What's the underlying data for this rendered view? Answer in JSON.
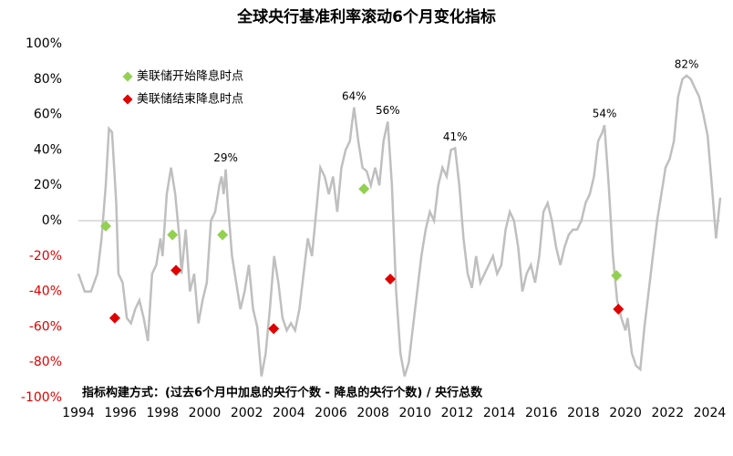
{
  "chart_data": {
    "type": "line",
    "title": "全球央行基准利率滚动6个月变化指标",
    "color": "#bfbfbf",
    "x": [
      1994.0,
      1994.3,
      1994.6,
      1994.9,
      1995.1,
      1995.3,
      1995.45,
      1995.6,
      1995.8,
      1995.9,
      1996.1,
      1996.3,
      1996.5,
      1996.7,
      1996.9,
      1997.1,
      1997.3,
      1997.5,
      1997.7,
      1997.9,
      1998.0,
      1998.2,
      1998.4,
      1998.6,
      1998.8,
      1998.9,
      1999.1,
      1999.3,
      1999.5,
      1999.7,
      1999.9,
      2000.1,
      2000.3,
      2000.5,
      2000.7,
      2000.8,
      2000.9,
      2001.0,
      2001.1,
      2001.3,
      2001.5,
      2001.7,
      2001.9,
      2002.1,
      2002.3,
      2002.5,
      2002.7,
      2002.9,
      2003.1,
      2003.3,
      2003.5,
      2003.7,
      2003.9,
      2004.1,
      2004.3,
      2004.5,
      2004.7,
      2004.9,
      2005.1,
      2005.3,
      2005.5,
      2005.7,
      2005.9,
      2006.1,
      2006.3,
      2006.5,
      2006.7,
      2006.9,
      2007.0,
      2007.1,
      2007.3,
      2007.5,
      2007.7,
      2007.9,
      2008.1,
      2008.3,
      2008.5,
      2008.7,
      2008.9,
      2009.1,
      2009.3,
      2009.5,
      2009.7,
      2009.9,
      2010.1,
      2010.3,
      2010.5,
      2010.7,
      2010.9,
      2011.1,
      2011.3,
      2011.5,
      2011.7,
      2011.9,
      2012.1,
      2012.3,
      2012.5,
      2012.7,
      2012.9,
      2013.1,
      2013.3,
      2013.5,
      2013.7,
      2013.9,
      2014.1,
      2014.3,
      2014.5,
      2014.7,
      2014.9,
      2015.1,
      2015.3,
      2015.5,
      2015.7,
      2015.9,
      2016.1,
      2016.3,
      2016.5,
      2016.7,
      2016.9,
      2017.1,
      2017.3,
      2017.5,
      2017.7,
      2017.9,
      2018.1,
      2018.3,
      2018.5,
      2018.7,
      2018.9,
      2019.0,
      2019.2,
      2019.4,
      2019.6,
      2019.8,
      2020.0,
      2020.1,
      2020.3,
      2020.5,
      2020.7,
      2020.9,
      2021.1,
      2021.3,
      2021.5,
      2021.7,
      2021.9,
      2022.1,
      2022.3,
      2022.5,
      2022.7,
      2022.9,
      2023.1,
      2023.3,
      2023.5,
      2023.7,
      2023.9,
      2024.1,
      2024.3,
      2024.5
    ],
    "values": [
      -30,
      -40,
      -40,
      -30,
      -10,
      20,
      52,
      50,
      10,
      -30,
      -35,
      -55,
      -58,
      -50,
      -45,
      -55,
      -68,
      -30,
      -25,
      -10,
      -20,
      15,
      30,
      15,
      -10,
      -30,
      -5,
      -40,
      -30,
      -58,
      -45,
      -35,
      0,
      5,
      20,
      25,
      15,
      29,
      10,
      -20,
      -35,
      -50,
      -40,
      -25,
      -50,
      -60,
      -88,
      -75,
      -50,
      -20,
      -35,
      -55,
      -62,
      -58,
      -62,
      -50,
      -30,
      -10,
      -20,
      5,
      30,
      25,
      15,
      25,
      5,
      30,
      40,
      45,
      55,
      64,
      45,
      30,
      28,
      20,
      30,
      20,
      45,
      56,
      20,
      -40,
      -75,
      -88,
      -80,
      -60,
      -40,
      -20,
      -5,
      5,
      0,
      20,
      30,
      25,
      40,
      41,
      20,
      -10,
      -30,
      -38,
      -20,
      -35,
      -30,
      -25,
      -20,
      -30,
      -25,
      -5,
      5,
      0,
      -15,
      -40,
      -30,
      -25,
      -35,
      -20,
      5,
      10,
      0,
      -15,
      -25,
      -15,
      -8,
      -5,
      -5,
      0,
      10,
      15,
      25,
      45,
      50,
      54,
      20,
      -20,
      -45,
      -55,
      -62,
      -55,
      -75,
      -82,
      -84,
      -60,
      -40,
      -20,
      0,
      15,
      30,
      35,
      45,
      70,
      80,
      82,
      80,
      75,
      70,
      60,
      48,
      20,
      -10,
      13
    ],
    "series": [
      {
        "name": "美联储开始降息时点",
        "color": "#92d050",
        "x": [
          1995.3,
          1998.47,
          2000.85,
          2007.57,
          2019.57
        ],
        "values": [
          -3,
          -8,
          -8,
          18,
          -31
        ]
      },
      {
        "name": "美联储结束降息时点",
        "color": "#e00000",
        "x": [
          1995.73,
          1998.64,
          2003.28,
          2008.82,
          2019.66
        ],
        "values": [
          -55,
          -28,
          -61,
          -33,
          -50
        ]
      }
    ],
    "annotations": [
      {
        "text": "29%",
        "x": 2001.0,
        "y": 29
      },
      {
        "text": "64%",
        "x": 2007.1,
        "y": 64
      },
      {
        "text": "56%",
        "x": 2008.7,
        "y": 56
      },
      {
        "text": "41%",
        "x": 2011.9,
        "y": 41
      },
      {
        "text": "54%",
        "x": 2019.0,
        "y": 54
      },
      {
        "text": "82%",
        "x": 2022.9,
        "y": 82
      }
    ],
    "note": "指标构建方式：(过去6个月中加息的央行个数 - 降息的央行个数) / 央行总数",
    "xlim": [
      1994,
      2024.5
    ],
    "xticks": [
      1994,
      1996,
      1998,
      2000,
      2002,
      2004,
      2006,
      2008,
      2010,
      2012,
      2014,
      2016,
      2018,
      2020,
      2022,
      2024
    ],
    "ylim": [
      -100,
      100
    ],
    "yticks": [
      {
        "value": -100,
        "label": "-100%"
      },
      {
        "value": -80,
        "label": "-80%"
      },
      {
        "value": -60,
        "label": "-60%"
      },
      {
        "value": -40,
        "label": "-40%"
      },
      {
        "value": -20,
        "label": "-20%"
      },
      {
        "value": 0,
        "label": "0%"
      },
      {
        "value": 20,
        "label": "20%"
      },
      {
        "value": 40,
        "label": "40%"
      },
      {
        "value": 60,
        "label": "60%"
      },
      {
        "value": 80,
        "label": "80%"
      },
      {
        "value": 100,
        "label": "100%"
      }
    ],
    "negative_tick_color": "#e00000",
    "legend": "upper left"
  }
}
